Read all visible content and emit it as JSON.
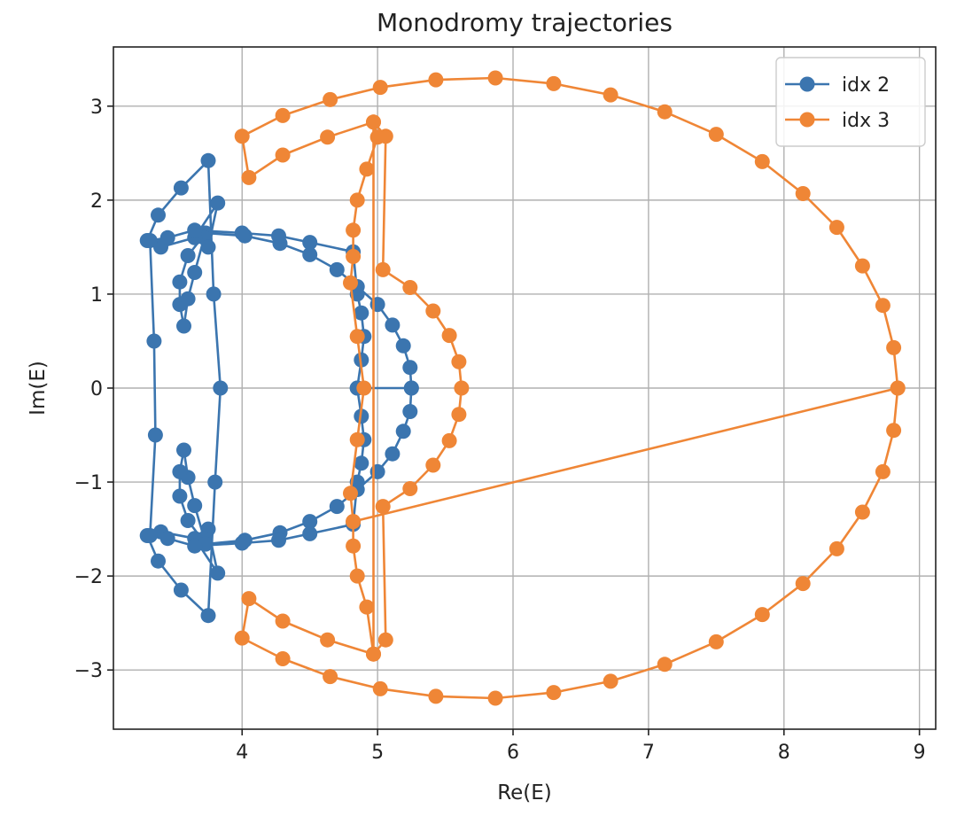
{
  "chart_data": {
    "type": "line",
    "title": "Monodromy trajectories",
    "xlabel": "Re(E)",
    "ylabel": "Im(E)",
    "xlim": [
      3.05,
      9.12
    ],
    "ylim": [
      -3.63,
      3.63
    ],
    "xticks": [
      4,
      5,
      6,
      7,
      8,
      9
    ],
    "yticks": [
      -3,
      -2,
      -1,
      0,
      1,
      2,
      3
    ],
    "xtick_labels": [
      "4",
      "5",
      "6",
      "7",
      "8",
      "9"
    ],
    "ytick_labels": [
      "−3",
      "−2",
      "−1",
      "0",
      "1",
      "2",
      "3"
    ],
    "grid": true,
    "legend_position": "top-right",
    "series": [
      {
        "name": "idx 2",
        "color": "#3b75af",
        "marker": "circle",
        "points": [
          [
            5.25,
            0.0
          ],
          [
            5.24,
            0.22
          ],
          [
            5.19,
            0.45
          ],
          [
            5.11,
            0.67
          ],
          [
            5.0,
            0.89
          ],
          [
            4.85,
            1.08
          ],
          [
            4.7,
            1.26
          ],
          [
            4.5,
            1.42
          ],
          [
            4.28,
            1.54
          ],
          [
            4.02,
            1.62
          ],
          [
            3.73,
            1.65
          ],
          [
            3.6,
            1.41
          ],
          [
            3.54,
            1.13
          ],
          [
            3.54,
            0.89
          ],
          [
            3.57,
            0.66
          ],
          [
            3.6,
            0.95
          ],
          [
            3.65,
            1.23
          ],
          [
            3.72,
            1.6
          ],
          [
            3.75,
            1.5
          ],
          [
            3.82,
            1.97
          ],
          [
            3.65,
            1.6
          ],
          [
            3.4,
            1.5
          ],
          [
            3.3,
            1.57
          ],
          [
            3.38,
            1.84
          ],
          [
            3.55,
            2.13
          ],
          [
            3.75,
            2.42
          ],
          [
            3.79,
            1.0
          ],
          [
            3.84,
            0.0
          ],
          [
            3.8,
            -1.0
          ],
          [
            3.75,
            -2.42
          ],
          [
            3.55,
            -2.15
          ],
          [
            3.38,
            -1.84
          ],
          [
            3.3,
            -1.57
          ],
          [
            3.4,
            -1.53
          ],
          [
            3.65,
            -1.6
          ],
          [
            3.82,
            -1.97
          ],
          [
            3.75,
            -1.5
          ],
          [
            3.72,
            -1.6
          ],
          [
            3.65,
            -1.25
          ],
          [
            3.6,
            -0.95
          ],
          [
            3.57,
            -0.66
          ],
          [
            3.54,
            -0.89
          ],
          [
            3.54,
            -1.15
          ],
          [
            3.6,
            -1.41
          ],
          [
            3.73,
            -1.66
          ],
          [
            4.02,
            -1.62
          ],
          [
            4.28,
            -1.54
          ],
          [
            4.5,
            -1.42
          ],
          [
            4.7,
            -1.26
          ],
          [
            4.85,
            -1.08
          ],
          [
            5.0,
            -0.89
          ],
          [
            5.11,
            -0.7
          ],
          [
            5.19,
            -0.46
          ],
          [
            5.24,
            -0.25
          ],
          [
            5.25,
            0.0
          ],
          [
            4.85,
            0.0
          ],
          [
            4.88,
            0.3
          ],
          [
            4.9,
            0.55
          ],
          [
            4.88,
            0.8
          ],
          [
            4.85,
            1.0
          ],
          [
            4.82,
            1.45
          ],
          [
            4.5,
            1.55
          ],
          [
            4.27,
            1.62
          ],
          [
            4.0,
            1.65
          ],
          [
            3.65,
            1.68
          ],
          [
            3.45,
            1.6
          ],
          [
            3.32,
            1.57
          ],
          [
            3.35,
            0.5
          ],
          [
            3.36,
            -0.5
          ],
          [
            3.32,
            -1.57
          ],
          [
            3.45,
            -1.6
          ],
          [
            3.65,
            -1.68
          ],
          [
            4.0,
            -1.65
          ],
          [
            4.27,
            -1.62
          ],
          [
            4.5,
            -1.55
          ],
          [
            4.82,
            -1.45
          ],
          [
            4.85,
            -1.0
          ],
          [
            4.88,
            -0.8
          ],
          [
            4.9,
            -0.55
          ],
          [
            4.88,
            -0.3
          ],
          [
            4.85,
            0.0
          ]
        ]
      },
      {
        "name": "idx 3",
        "color": "#ef8636",
        "marker": "circle",
        "points": [
          [
            8.84,
            0.0
          ],
          [
            8.81,
            0.43
          ],
          [
            8.73,
            0.88
          ],
          [
            8.58,
            1.3
          ],
          [
            8.39,
            1.71
          ],
          [
            8.14,
            2.07
          ],
          [
            7.84,
            2.41
          ],
          [
            7.5,
            2.7
          ],
          [
            7.12,
            2.94
          ],
          [
            6.72,
            3.12
          ],
          [
            6.3,
            3.24
          ],
          [
            5.87,
            3.3
          ],
          [
            5.43,
            3.28
          ],
          [
            5.02,
            3.2
          ],
          [
            4.65,
            3.07
          ],
          [
            4.3,
            2.9
          ],
          [
            4.0,
            2.68
          ],
          [
            4.05,
            2.24
          ],
          [
            4.3,
            2.48
          ],
          [
            4.63,
            2.67
          ],
          [
            4.97,
            2.83
          ],
          [
            5.06,
            2.68
          ],
          [
            5.04,
            1.26
          ],
          [
            5.24,
            1.07
          ],
          [
            5.41,
            0.82
          ],
          [
            5.53,
            0.56
          ],
          [
            5.6,
            0.28
          ],
          [
            5.62,
            0.0
          ],
          [
            5.6,
            -0.28
          ],
          [
            5.53,
            -0.56
          ],
          [
            5.41,
            -0.82
          ],
          [
            5.24,
            -1.07
          ],
          [
            5.04,
            -1.26
          ],
          [
            5.06,
            -2.68
          ],
          [
            4.97,
            -2.83
          ],
          [
            4.63,
            -2.68
          ],
          [
            4.3,
            -2.48
          ],
          [
            4.05,
            -2.24
          ],
          [
            4.0,
            -2.66
          ],
          [
            4.3,
            -2.88
          ],
          [
            4.65,
            -3.07
          ],
          [
            5.02,
            -3.2
          ],
          [
            5.43,
            -3.28
          ],
          [
            5.87,
            -3.3
          ],
          [
            6.3,
            -3.24
          ],
          [
            6.72,
            -3.12
          ],
          [
            7.12,
            -2.94
          ],
          [
            7.5,
            -2.7
          ],
          [
            7.84,
            -2.41
          ],
          [
            8.14,
            -2.08
          ],
          [
            8.39,
            -1.71
          ],
          [
            8.58,
            -1.32
          ],
          [
            8.73,
            -0.89
          ],
          [
            8.81,
            -0.45
          ],
          [
            8.84,
            0.0
          ],
          [
            4.82,
            -1.42
          ],
          [
            4.8,
            -1.12
          ],
          [
            4.85,
            -0.55
          ],
          [
            4.9,
            0.0
          ],
          [
            4.85,
            0.55
          ],
          [
            4.8,
            1.12
          ],
          [
            4.82,
            1.4
          ],
          [
            4.82,
            1.68
          ],
          [
            4.85,
            2.0
          ],
          [
            4.92,
            2.33
          ],
          [
            5.0,
            2.67
          ],
          [
            4.97,
            2.83
          ],
          [
            4.97,
            -2.83
          ],
          [
            4.92,
            -2.33
          ],
          [
            4.85,
            -2.0
          ],
          [
            4.82,
            -1.68
          ],
          [
            4.82,
            -1.42
          ]
        ]
      }
    ]
  }
}
